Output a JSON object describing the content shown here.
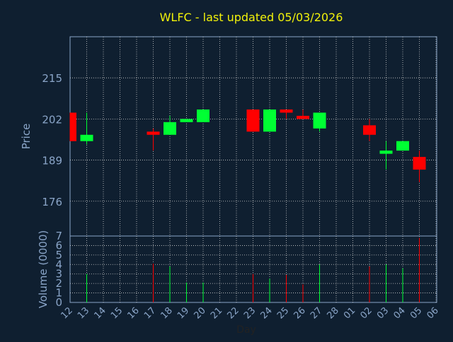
{
  "chart_data": {
    "type": "candlestick",
    "title": "WLFC - last updated 05/03/2026",
    "xlabel": "Day",
    "ylabel": "Price",
    "volume_label": "Volume (0000)",
    "price_ticks": [
      "215",
      "202",
      "189",
      "176"
    ],
    "volume_ticks": [
      "0",
      "1",
      "2",
      "3",
      "4",
      "5",
      "6",
      "7"
    ],
    "ylim": [
      165,
      228
    ],
    "volume_ylim": [
      0,
      7
    ],
    "grid": true,
    "colors": {
      "background": "#0f1f30",
      "title": "#f2f20a",
      "axis_text": "#8aa5c8",
      "up": "#00ff33",
      "down": "#ff0000",
      "grid": "#d0d0d0",
      "frame": "#8aa5c8"
    },
    "x_ticks": [
      "12",
      "13",
      "14",
      "15",
      "16",
      "17",
      "18",
      "19",
      "20",
      "21",
      "22",
      "23",
      "24",
      "25",
      "26",
      "27",
      "28",
      "01",
      "02",
      "03",
      "04",
      "05",
      "06"
    ],
    "candles": [
      {
        "day": "12",
        "open": 204,
        "close": 195,
        "high": 204,
        "low": 195,
        "volume": 0
      },
      {
        "day": "13",
        "open": 195,
        "close": 197,
        "high": 204,
        "low": 194,
        "volume": 3.0
      },
      {
        "day": "17",
        "open": 198,
        "close": 197,
        "high": 199,
        "low": 192,
        "volume": 4.1
      },
      {
        "day": "18",
        "open": 197,
        "close": 201,
        "high": 203,
        "low": 197,
        "volume": 3.8
      },
      {
        "day": "19",
        "open": 201,
        "close": 202,
        "high": 202,
        "low": 201,
        "volume": 2.1
      },
      {
        "day": "20",
        "open": 201,
        "close": 205,
        "high": 205,
        "low": 201,
        "volume": 2.1
      },
      {
        "day": "23",
        "open": 205,
        "close": 198,
        "high": 205,
        "low": 198,
        "volume": 3.0
      },
      {
        "day": "24",
        "open": 198,
        "close": 205,
        "high": 205,
        "low": 198,
        "volume": 2.5
      },
      {
        "day": "25",
        "open": 205,
        "close": 204,
        "high": 205,
        "low": 202,
        "volume": 2.9
      },
      {
        "day": "26",
        "open": 203,
        "close": 202,
        "high": 205,
        "low": 202,
        "volume": 1.9
      },
      {
        "day": "27",
        "open": 199,
        "close": 204,
        "high": 204,
        "low": 198,
        "volume": 4.0
      },
      {
        "day": "02",
        "open": 200,
        "close": 197,
        "high": 202,
        "low": 195,
        "volume": 3.8
      },
      {
        "day": "03",
        "open": 191,
        "close": 192,
        "high": 195,
        "low": 186,
        "volume": 4.0
      },
      {
        "day": "04",
        "open": 192,
        "close": 195,
        "high": 195,
        "low": 192,
        "volume": 3.6
      },
      {
        "day": "05",
        "open": 190,
        "close": 186,
        "high": 192,
        "low": 182,
        "volume": 6.8
      }
    ]
  }
}
